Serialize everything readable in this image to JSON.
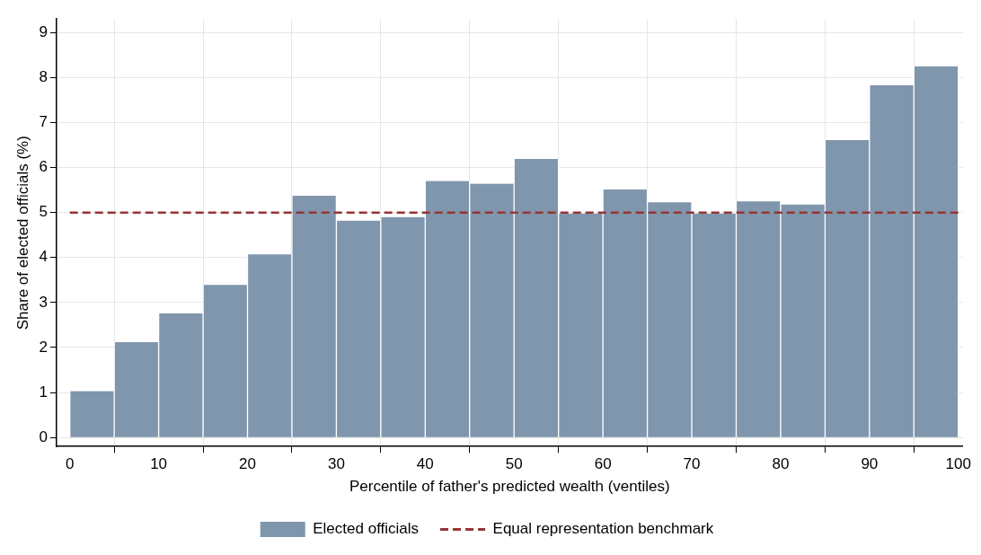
{
  "chart_data": {
    "type": "histogram",
    "xlabel": "Percentile of father's predicted wealth (ventiles)",
    "ylabel": "Share of elected officials (%)",
    "bins": [
      0,
      5,
      10,
      15,
      20,
      25,
      30,
      35,
      40,
      45,
      50,
      55,
      60,
      65,
      70,
      75,
      80,
      85,
      90,
      95,
      100
    ],
    "series": [
      {
        "name": "Elected officials",
        "color": "#7f96ad",
        "values": [
          1.03,
          2.12,
          2.76,
          3.39,
          4.07,
          5.37,
          4.82,
          4.9,
          5.7,
          5.64,
          6.19,
          4.98,
          5.51,
          5.23,
          4.98,
          5.25,
          5.18,
          6.61,
          7.83,
          8.25
        ]
      },
      {
        "type": "line",
        "name": "Equal representation benchmark",
        "color": "#953535",
        "line_style": "dashed",
        "x": [
          0,
          100
        ],
        "values": [
          5,
          5
        ]
      }
    ],
    "xlim": [
      -1.5,
      100.5
    ],
    "xticks": [
      0,
      10,
      20,
      30,
      40,
      50,
      60,
      70,
      80,
      90,
      100
    ],
    "ylim": [
      -0.2,
      9.3
    ],
    "yticks": [
      0,
      1,
      2,
      3,
      4,
      5,
      6,
      7,
      8,
      9
    ],
    "grid": true,
    "legend": "bottom"
  }
}
